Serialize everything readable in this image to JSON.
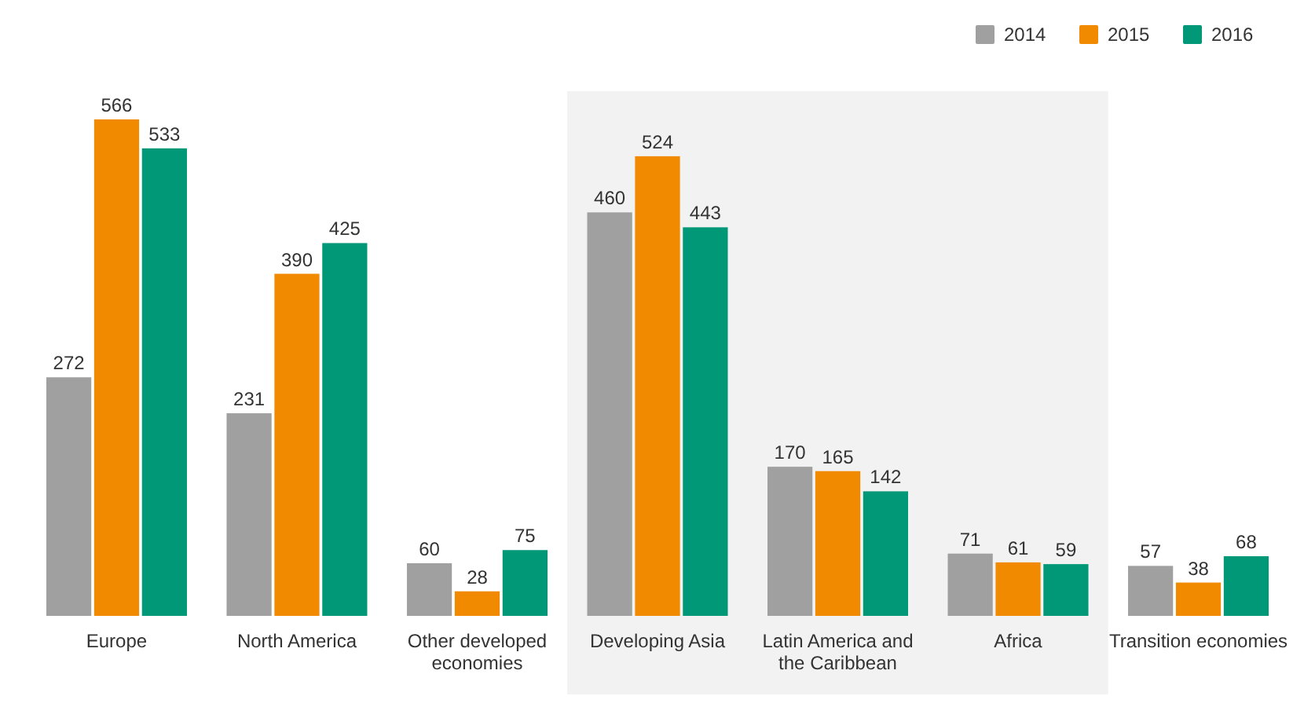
{
  "chart_data": {
    "type": "bar",
    "categories": [
      "Europe",
      "North America",
      "Other developed economies",
      "Developing Asia",
      "Latin America and the Caribbean",
      "Africa",
      "Transition economies"
    ],
    "series": [
      {
        "name": "2014",
        "color": "#a0a0a0",
        "values": [
          272,
          231,
          60,
          460,
          170,
          71,
          57
        ]
      },
      {
        "name": "2015",
        "color": "#f28a00",
        "values": [
          566,
          390,
          28,
          524,
          165,
          61,
          38
        ]
      },
      {
        "name": "2016",
        "color": "#009877",
        "values": [
          533,
          425,
          75,
          443,
          142,
          59,
          68
        ]
      }
    ],
    "bands": [
      {
        "axis": "x",
        "from": "Developing Asia",
        "to": "Africa",
        "color": "#f2f2f2"
      }
    ],
    "data_labels": true,
    "legend": "top right"
  }
}
